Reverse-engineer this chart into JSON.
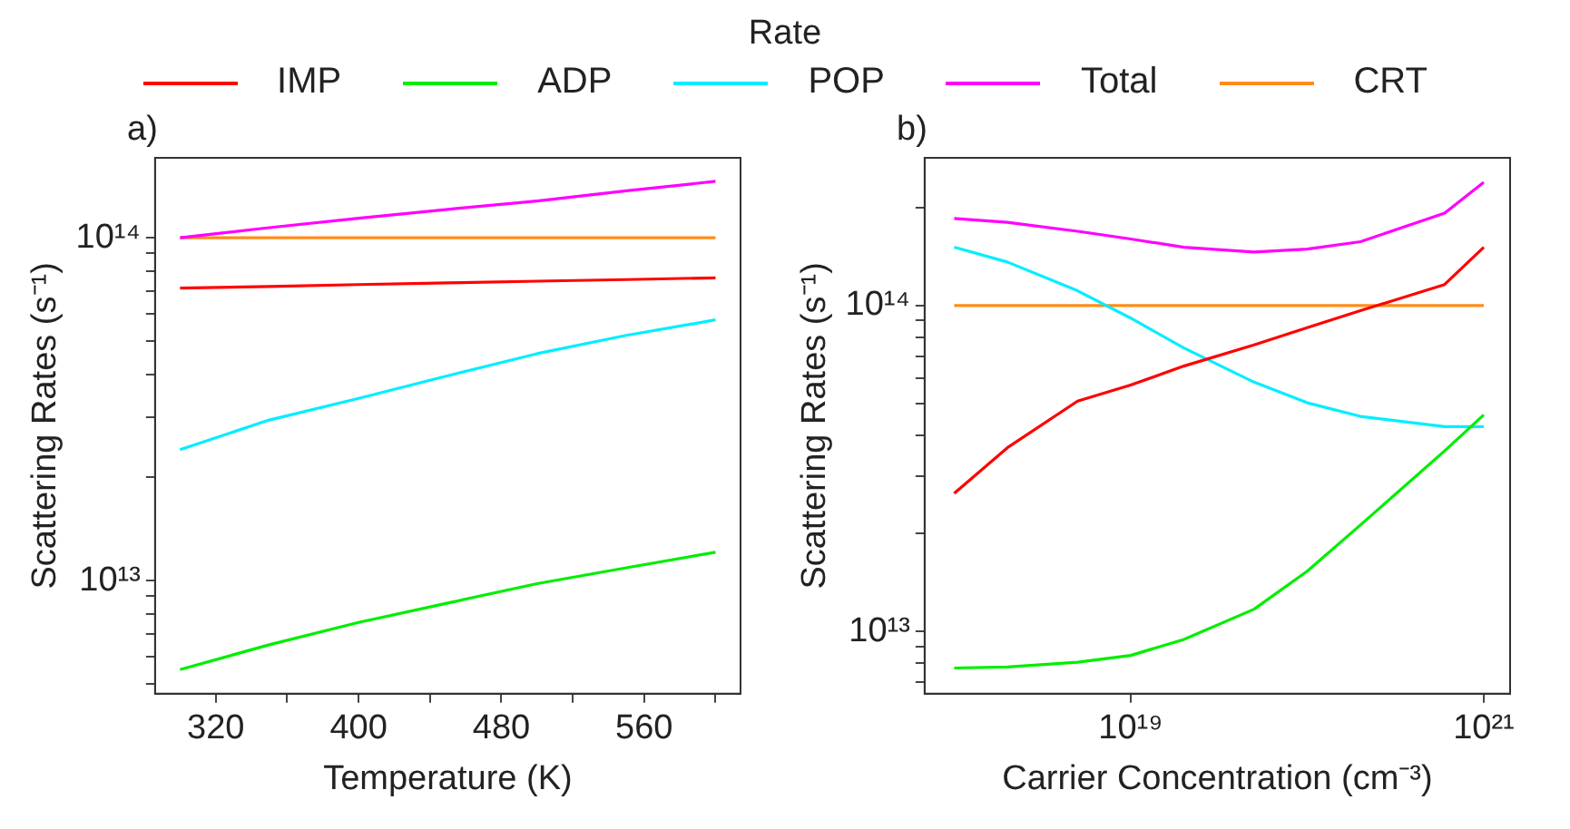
{
  "chart_data": [
    {
      "type": "line",
      "xlabel": "Temperature (K)",
      "ylabel": "Scattering Rates (s⁻¹)",
      "legend_title": "Rate",
      "legend": "top",
      "annotations": [
        "a)"
      ],
      "log": "y",
      "grid": false,
      "marker": "none",
      "line_style": "solid",
      "x": [
        300,
        350,
        400,
        450,
        500,
        550,
        600
      ],
      "xlim": [
        286,
        614
      ],
      "xticks": [
        320,
        {
          "value": 360,
          "label": null
        },
        400,
        {
          "value": 440,
          "label": null
        },
        480,
        {
          "value": 520,
          "label": null
        },
        560,
        {
          "value": 600,
          "label": null
        }
      ],
      "ylim": [
        4680000000000.0,
        171000000000000.0
      ],
      "yticks": [
        {
          "value": 5000000000000.0,
          "label": null
        },
        {
          "value": 6000000000000.0,
          "label": null
        },
        {
          "value": 7000000000000.0,
          "label": null
        },
        {
          "value": 8000000000000.0,
          "label": null
        },
        {
          "value": 9000000000000.0,
          "label": null
        },
        {
          "value": 10000000000000.0,
          "label": "10¹³"
        },
        {
          "value": 20000000000000.0,
          "label": null
        },
        {
          "value": 30000000000000.0,
          "label": null
        },
        {
          "value": 40000000000000.0,
          "label": null
        },
        {
          "value": 50000000000000.0,
          "label": null
        },
        {
          "value": 60000000000000.0,
          "label": null
        },
        {
          "value": 70000000000000.0,
          "label": null
        },
        {
          "value": 80000000000000.0,
          "label": null
        },
        {
          "value": 90000000000000.0,
          "label": null
        },
        {
          "value": 100000000000000.0,
          "label": "10¹⁴"
        }
      ],
      "series": [
        {
          "name": "IMP",
          "color": "#ff0000",
          "values": [
            71300000000000.0,
            72100000000000.0,
            73000000000000.0,
            73800000000000.0,
            74700000000000.0,
            75500000000000.0,
            76400000000000.0
          ]
        },
        {
          "name": "ADP",
          "color": "#00ee00",
          "values": [
            5500000000000.0,
            6500000000000.0,
            7550000000000.0,
            8600000000000.0,
            9800000000000.0,
            10900000000000.0,
            12100000000000.0
          ]
        },
        {
          "name": "POP",
          "color": "#00eeff",
          "values": [
            24100000000000.0,
            29400000000000.0,
            34000000000000.0,
            39600000000000.0,
            45900000000000.0,
            51900000000000.0,
            57600000000000.0
          ]
        },
        {
          "name": "Total",
          "color": "#ff00ff",
          "values": [
            100000000000000.0,
            107000000000000.0,
            114000000000000.0,
            121000000000000.0,
            128000000000000.0,
            137000000000000.0,
            146000000000000.0
          ]
        },
        {
          "name": "CRT",
          "color": "#ff8c1a",
          "values": [
            100000000000000.0,
            100000000000000.0,
            100000000000000.0,
            100000000000000.0,
            100000000000000.0,
            100000000000000.0,
            100000000000000.0
          ]
        }
      ]
    },
    {
      "type": "line",
      "xlabel": "Carrier Concentration (cm⁻³)",
      "ylabel": "Scattering Rates (s⁻¹)",
      "annotations": [
        "b)"
      ],
      "log": "xy",
      "grid": false,
      "marker": "none",
      "line_style": "solid",
      "x": [
        1e+18,
        2e+18,
        5e+18,
        1e+19,
        2e+19,
        5e+19,
        1e+20,
        2e+20,
        6e+20,
        1e+21
      ],
      "xlim": [
        6.8e+17,
        1.41e+21
      ],
      "xticks": [
        {
          "value": 1e+19,
          "label": "10¹⁹"
        },
        {
          "value": 1e+21,
          "label": "10²¹"
        }
      ],
      "ylim": [
        6440000000000.0,
        284000000000000.0
      ],
      "yticks": [
        {
          "value": 7000000000000.0,
          "label": null
        },
        {
          "value": 8000000000000.0,
          "label": null
        },
        {
          "value": 9000000000000.0,
          "label": null
        },
        {
          "value": 10000000000000.0,
          "label": "10¹³"
        },
        {
          "value": 20000000000000.0,
          "label": null
        },
        {
          "value": 30000000000000.0,
          "label": null
        },
        {
          "value": 40000000000000.0,
          "label": null
        },
        {
          "value": 50000000000000.0,
          "label": null
        },
        {
          "value": 60000000000000.0,
          "label": null
        },
        {
          "value": 70000000000000.0,
          "label": null
        },
        {
          "value": 80000000000000.0,
          "label": null
        },
        {
          "value": 90000000000000.0,
          "label": null
        },
        {
          "value": 100000000000000.0,
          "label": "10¹⁴"
        },
        {
          "value": 200000000000000.0,
          "label": null
        }
      ],
      "series": [
        {
          "color": "#ff0000",
          "values": [
            26500000000000.0,
            36600000000000.0,
            50900000000000.0,
            57000000000000.0,
            65200000000000.0,
            75700000000000.0,
            85500000000000.0,
            96400000000000.0,
            116000000000000.0,
            151000000000000.0
          ]
        },
        {
          "color": "#00ee00",
          "values": [
            7720000000000.0,
            7780000000000.0,
            8040000000000.0,
            8440000000000.0,
            9450000000000.0,
            11700000000000.0,
            15300000000000.0,
            21200000000000.0,
            35800000000000.0,
            46200000000000.0
          ]
        },
        {
          "color": "#00eeff",
          "values": [
            151000000000000.0,
            136000000000000.0,
            111000000000000.0,
            91500000000000.0,
            74100000000000.0,
            58200000000000.0,
            50300000000000.0,
            45700000000000.0,
            42500000000000.0,
            42500000000000.0
          ]
        },
        {
          "color": "#ff00ff",
          "values": [
            185000000000000.0,
            180000000000000.0,
            169000000000000.0,
            160000000000000.0,
            151000000000000.0,
            146000000000000.0,
            149000000000000.0,
            157000000000000.0,
            192000000000000.0,
            239000000000000.0
          ]
        },
        {
          "color": "#ff8c1a",
          "values": [
            100000000000000.0,
            100000000000000.0,
            100000000000000.0,
            100000000000000.0,
            100000000000000.0,
            100000000000000.0,
            100000000000000.0,
            100000000000000.0,
            100000000000000.0,
            100000000000000.0
          ]
        }
      ]
    }
  ]
}
